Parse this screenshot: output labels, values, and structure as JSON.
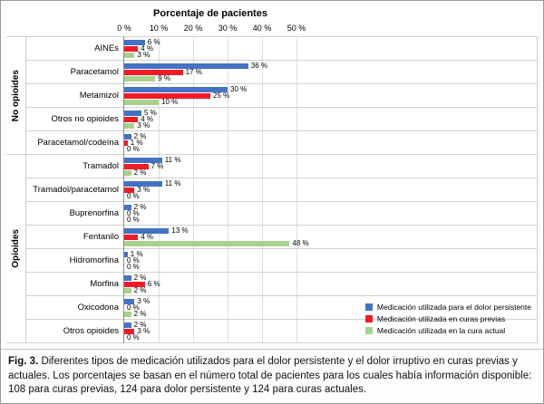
{
  "chart_data": {
    "type": "bar",
    "orientation": "horizontal",
    "title": "Porcentaje de pacientes",
    "x_ticks": [
      "0 %",
      "10 %",
      "20 %",
      "30 %",
      "40 %",
      "50 %"
    ],
    "xlim": [
      0,
      50
    ],
    "grid": true,
    "legend_position": "bottom-right",
    "value_suffix": " %",
    "groups": [
      {
        "label": "No opioides",
        "categories": [
          "AINEs",
          "Paracetamol",
          "Metamizol",
          "Otros no opioides",
          "Paracetamol/codeína"
        ]
      },
      {
        "label": "Opioides",
        "categories": [
          "Tramadol",
          "Tramadol/paracetamol",
          "Buprenorfina",
          "Fentanilo",
          "Hidromorfina",
          "Morfina",
          "Oxicodona",
          "Otros opioides"
        ]
      }
    ],
    "series": [
      {
        "name": "Medicación utilizada para el dolor persistente",
        "color": "#4472c4",
        "values": [
          6,
          36,
          30,
          5,
          2,
          11,
          11,
          2,
          13,
          1,
          2,
          3,
          2
        ]
      },
      {
        "name": "Medicación utilizada en curas previas",
        "color": "#ee1c25",
        "values": [
          4,
          17,
          25,
          4,
          1,
          7,
          3,
          0,
          4,
          0,
          6,
          0,
          3
        ]
      },
      {
        "name": "Medicación utilizada en la cura actual",
        "color": "#a9d18e",
        "values": [
          3,
          9,
          10,
          3,
          0,
          2,
          0,
          0,
          48,
          0,
          2,
          2,
          0
        ]
      }
    ]
  },
  "caption": {
    "label": "Fig. 3.",
    "text": "Diferentes tipos de medicación utilizados para el dolor persistente y el dolor irruptivo en curas previas y actuales. Los porcentajes se basan en el número total de pacientes para los cuales había información disponible: 108 para curas previas, 124 para dolor persistente y 124 para curas actuales."
  }
}
